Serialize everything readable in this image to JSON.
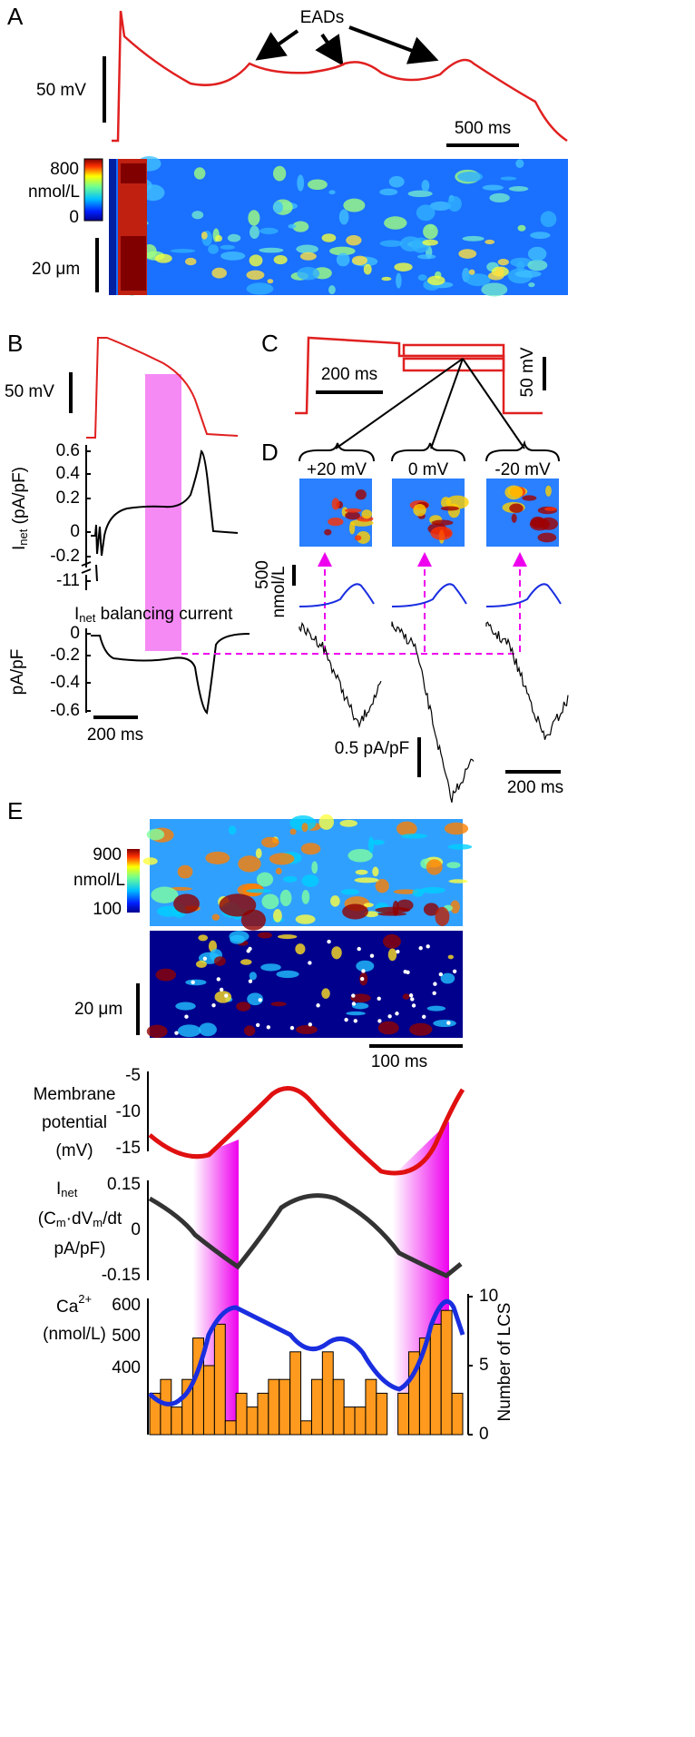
{
  "panelA": {
    "label": "A",
    "annotation": "EADs",
    "scale_voltage": "50 mV",
    "scale_time": "500 ms",
    "colorbar_max": "800",
    "colorbar_unit": "nmol/L",
    "colorbar_min": "0",
    "scale_space": "20 μm"
  },
  "panelB": {
    "label": "B",
    "scale_voltage": "50 mV",
    "inet_ticks": [
      "0.6",
      "0.4",
      "0.2",
      "0",
      "-0.2",
      "-11"
    ],
    "inet_label": {
      "main": "I",
      "sub": "net",
      "rest": " (pA/pF)"
    },
    "balancing": {
      "main": "I",
      "sub": "net",
      "rest": " balancing current"
    },
    "bal_ticks": [
      "0",
      "-0.2",
      "-0.4",
      "-0.6"
    ],
    "bal_unit": "pA/pF",
    "scale_time": "200 ms"
  },
  "panelC": {
    "label": "C",
    "scale_time": "200 ms",
    "scale_voltage": "50 mV"
  },
  "panelD": {
    "label": "D",
    "steps": [
      "+20 mV",
      "0 mV",
      "-20 mV"
    ],
    "scale_conc": "500",
    "scale_conc_unit": "nmol/L",
    "scale_current": "0.5 pA/pF",
    "scale_time": "200 ms"
  },
  "panelE": {
    "label": "E",
    "colorbar_max": "900",
    "colorbar_unit": "nmol/L",
    "colorbar_min": "100",
    "scale_space": "20 μm",
    "scale_time": "100 ms",
    "vm_label": [
      "Membrane",
      "potential",
      "(mV)"
    ],
    "vm_ticks": [
      "-5",
      "-10",
      "-15"
    ],
    "inet_label": {
      "main": "I",
      "sub": "net",
      "line2a": "(C",
      "line2b": "m",
      "line2c": "·dV",
      "line2d": "m",
      "line2e": "/dt",
      "line3": "pA/pF)"
    },
    "inet_ticks": [
      "0.15",
      "0",
      "-0.15"
    ],
    "ca_label": {
      "main": "Ca",
      "sup": "2+",
      "line2": "(nmol/L)"
    },
    "ca_ticks": [
      "600",
      "500",
      "400"
    ],
    "lcs_label": "Number of LCS",
    "lcs_lim": [
      0,
      10
    ],
    "lcs_ticks": [
      0,
      5,
      10
    ],
    "lcs_counts": [
      3,
      4,
      2,
      4,
      7,
      5,
      8,
      1,
      3,
      2,
      3,
      4,
      4,
      6,
      1,
      4,
      6,
      4,
      2,
      2,
      4,
      3,
      0,
      3,
      6,
      7,
      8,
      9,
      3
    ]
  }
}
